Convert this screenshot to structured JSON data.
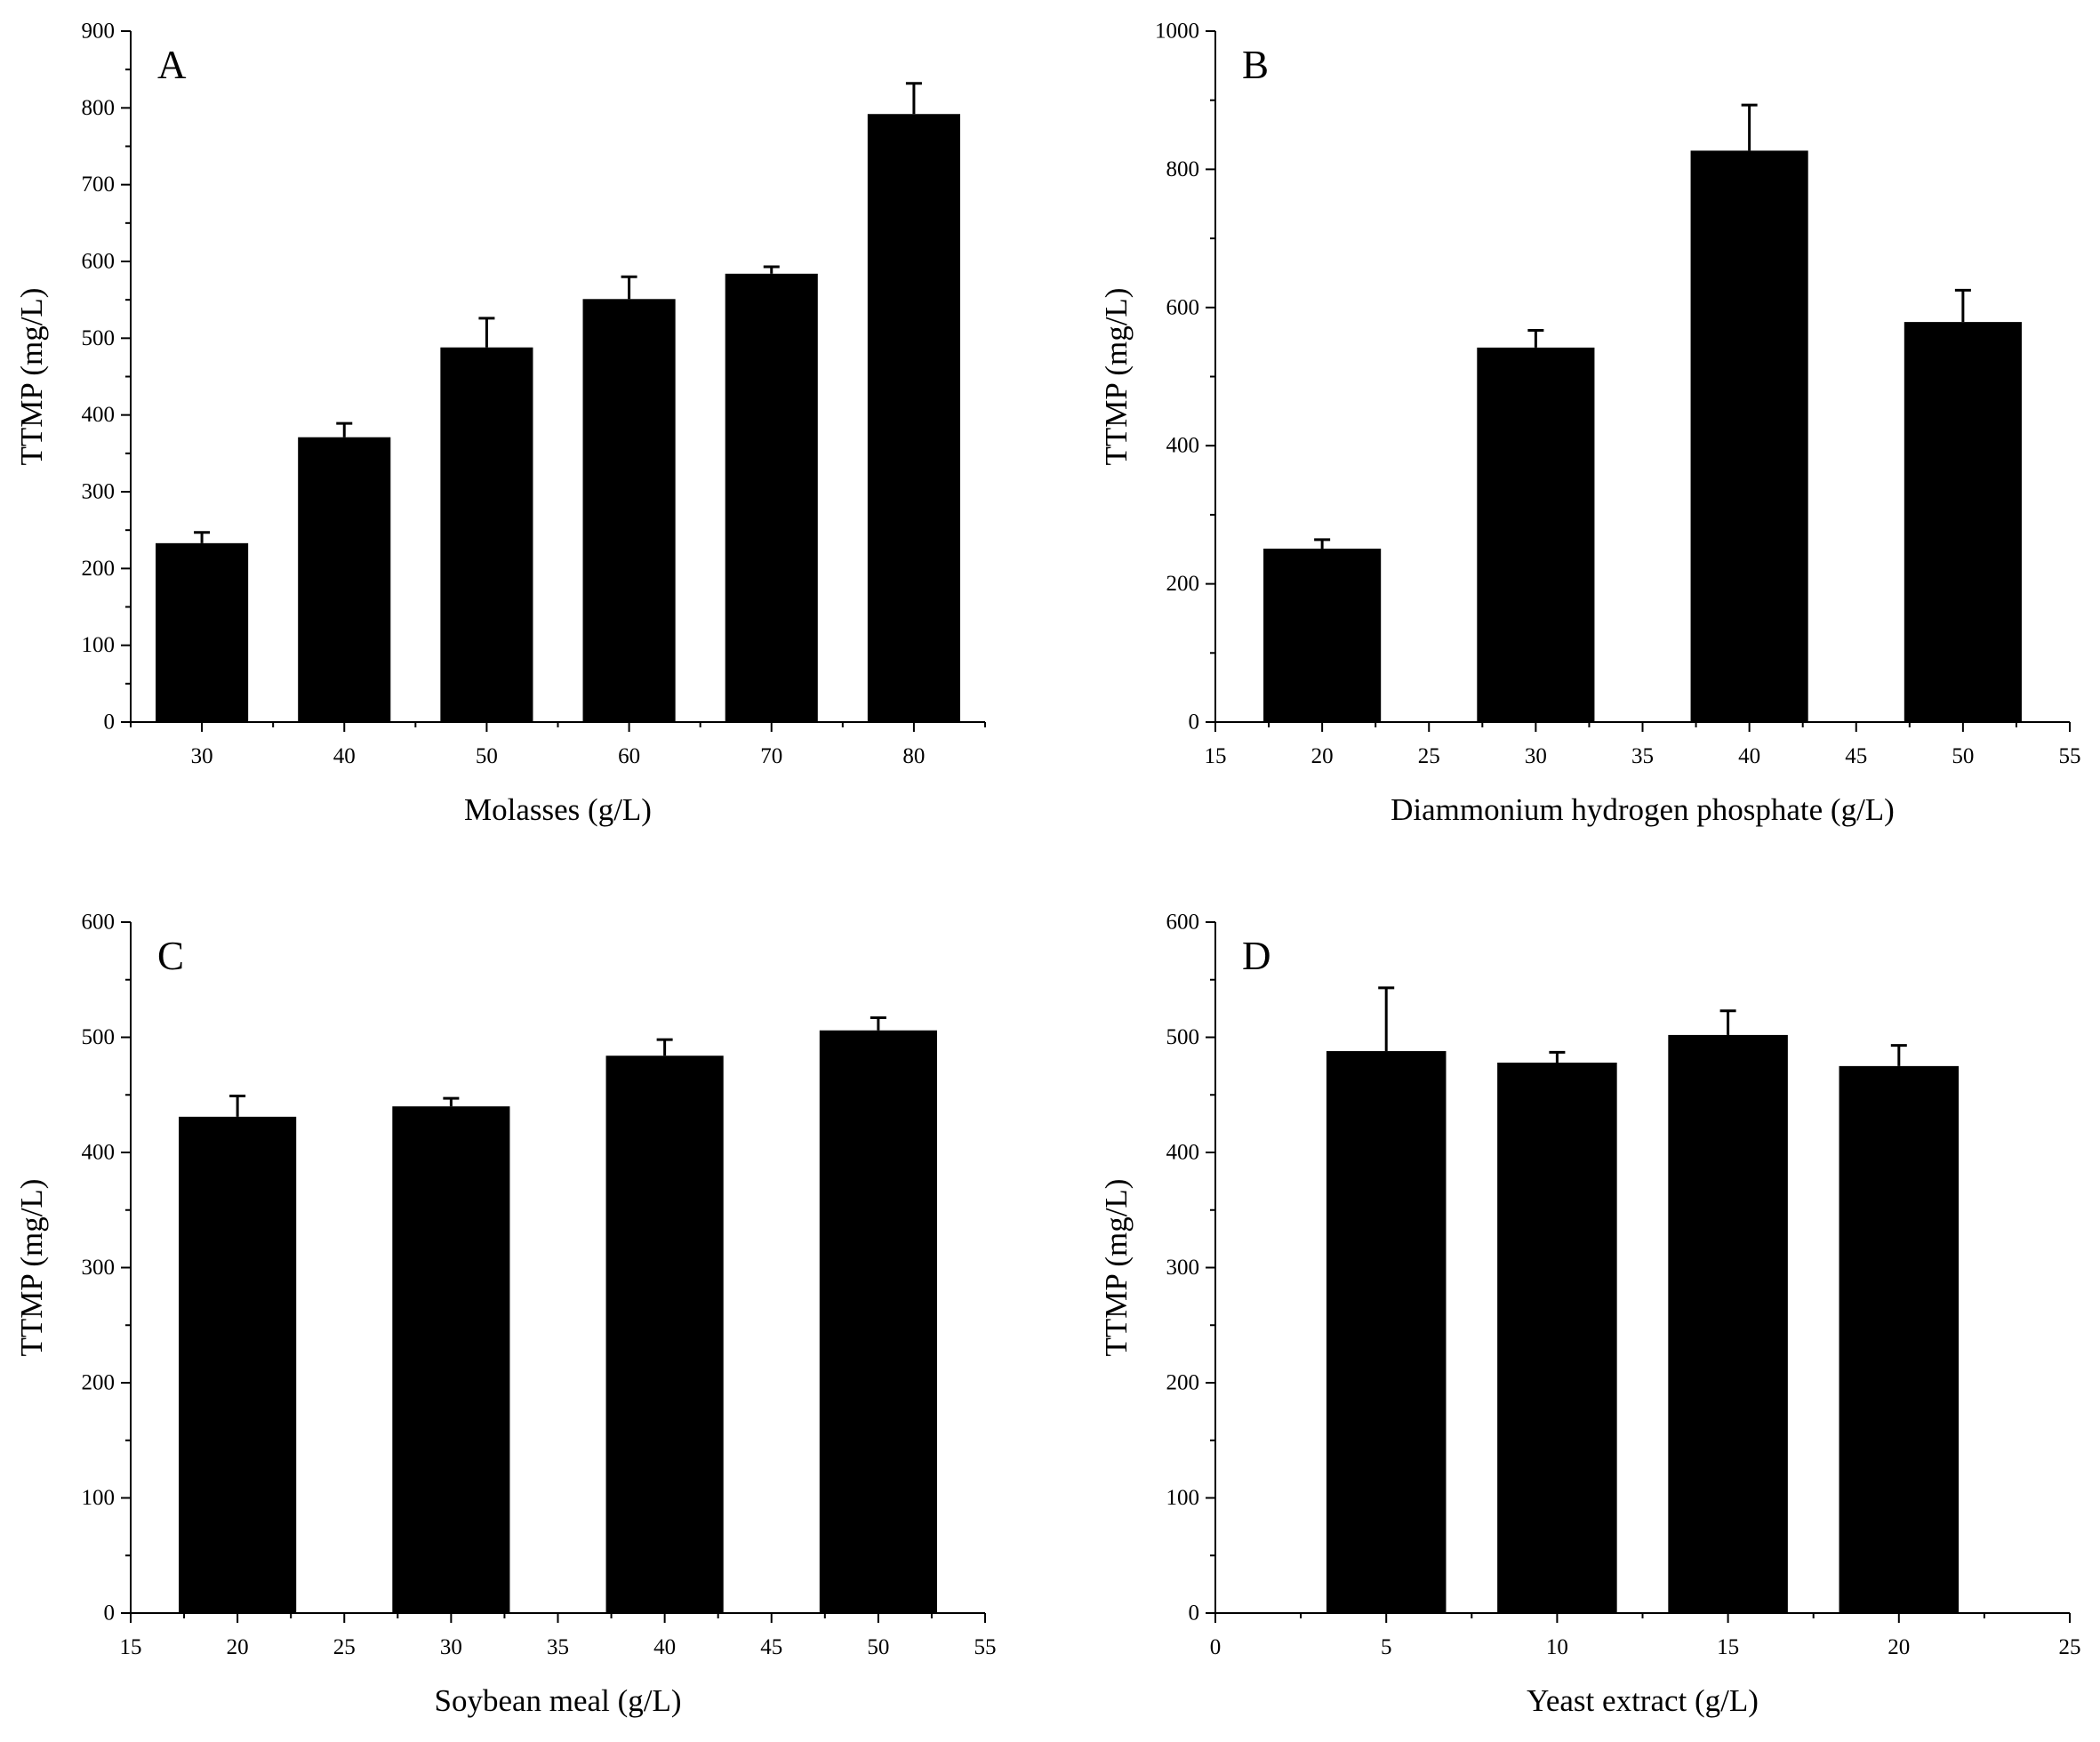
{
  "chart_data": [
    {
      "type": "bar",
      "panel_label": "A",
      "xlabel": "Molasses (g/L)",
      "ylabel": "TTMP (mg/L)",
      "xaxis": "categorical",
      "categories": [
        "30",
        "40",
        "50",
        "60",
        "70",
        "80"
      ],
      "values": [
        233,
        371,
        488,
        551,
        584,
        792
      ],
      "errors": [
        14,
        18,
        38,
        29,
        9,
        40
      ],
      "ylim": [
        0,
        900
      ],
      "yticks": [
        0,
        100,
        200,
        300,
        400,
        500,
        600,
        700,
        800,
        900
      ],
      "yminor": 50
    },
    {
      "type": "bar",
      "panel_label": "B",
      "xlabel": "Diammonium hydrogen phosphate (g/L)",
      "ylabel": "TTMP (mg/L)",
      "xaxis": "numeric",
      "x": [
        20,
        30,
        40,
        50
      ],
      "values": [
        251,
        542,
        827,
        579
      ],
      "errors": [
        13,
        25,
        66,
        46
      ],
      "xlim": [
        15,
        55
      ],
      "xticks": [
        15,
        20,
        25,
        30,
        35,
        40,
        45,
        50,
        55
      ],
      "bar_width": 5.5,
      "ylim": [
        0,
        1000
      ],
      "yticks": [
        0,
        200,
        400,
        600,
        800,
        1000
      ],
      "yminor": 100
    },
    {
      "type": "bar",
      "panel_label": "C",
      "xlabel": "Soybean meal (g/L)",
      "ylabel": "TTMP (mg/L)",
      "xaxis": "numeric",
      "x": [
        20,
        30,
        40,
        50
      ],
      "values": [
        431,
        440,
        484,
        506
      ],
      "errors": [
        18,
        7,
        14,
        11
      ],
      "xlim": [
        15,
        55
      ],
      "xticks": [
        15,
        20,
        25,
        30,
        35,
        40,
        45,
        50,
        55
      ],
      "bar_width": 5.5,
      "ylim": [
        0,
        600
      ],
      "yticks": [
        0,
        100,
        200,
        300,
        400,
        500,
        600
      ],
      "yminor": 50
    },
    {
      "type": "bar",
      "panel_label": "D",
      "xlabel": "Yeast extract (g/L)",
      "ylabel": "TTMP (mg/L)",
      "xaxis": "numeric",
      "x": [
        5,
        10,
        15,
        20
      ],
      "values": [
        488,
        478,
        502,
        475
      ],
      "errors": [
        55,
        9,
        21,
        18
      ],
      "xlim": [
        0,
        25
      ],
      "xticks": [
        0,
        5,
        10,
        15,
        20,
        25
      ],
      "bar_width": 3.5,
      "ylim": [
        0,
        600
      ],
      "yticks": [
        0,
        100,
        200,
        300,
        400,
        500,
        600
      ],
      "yminor": 50
    }
  ]
}
